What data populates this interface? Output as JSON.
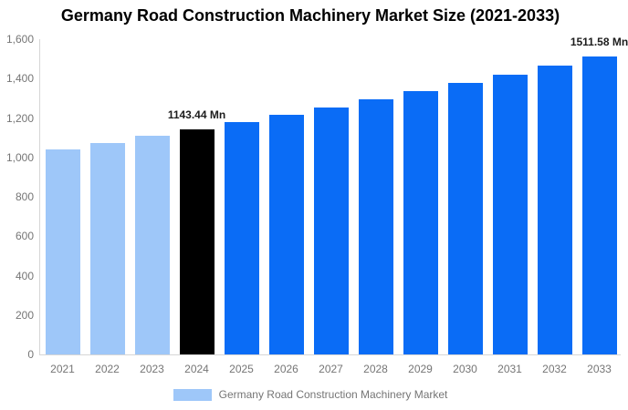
{
  "title": "Germany Road Construction Machinery Market Size (2021-2033)",
  "legend": {
    "items": [
      {
        "label": "Germany Road Construction Machinery Market",
        "swatch_color": "#9ec7f9"
      }
    ]
  },
  "colors": {
    "historical_bar": "#9ec7f9",
    "base_year_bar": "#000000",
    "forecast_bar": "#0a6cf6",
    "axis_line": "#d6d6d6",
    "tick_text": "#757575",
    "data_label_text": "#1c1c1c",
    "title_text": "#000000",
    "background": "#ffffff"
  },
  "chart_data": {
    "type": "bar",
    "title": "Germany Road Construction Machinery Market Size (2021-2033)",
    "xlabel": "",
    "ylabel": "",
    "unit": "Mn",
    "ylim": [
      0,
      1600
    ],
    "ytick_step": 200,
    "grid": false,
    "legend_position": "bottom",
    "categories": [
      "2021",
      "2022",
      "2023",
      "2024",
      "2025",
      "2026",
      "2027",
      "2028",
      "2029",
      "2030",
      "2031",
      "2032",
      "2033"
    ],
    "values": [
      1041.8,
      1074.6,
      1108.4,
      1143.44,
      1179.5,
      1216.6,
      1254.9,
      1294.5,
      1335.3,
      1377.3,
      1420.7,
      1465.5,
      1511.58
    ],
    "yticks": [
      {
        "label": "0",
        "value": 0
      },
      {
        "label": "200",
        "value": 200
      },
      {
        "label": "400",
        "value": 400
      },
      {
        "label": "600",
        "value": 600
      },
      {
        "label": "800",
        "value": 800
      },
      {
        "label": "1,000",
        "value": 1000
      },
      {
        "label": "1,200",
        "value": 1200
      },
      {
        "label": "1,400",
        "value": 1400
      },
      {
        "label": "1,600",
        "value": 1600
      }
    ],
    "bars": [
      {
        "year": "2021",
        "value": 1041.8,
        "color": "#9ec7f9",
        "label": ""
      },
      {
        "year": "2022",
        "value": 1074.6,
        "color": "#9ec7f9",
        "label": ""
      },
      {
        "year": "2023",
        "value": 1108.4,
        "color": "#9ec7f9",
        "label": ""
      },
      {
        "year": "2024",
        "value": 1143.44,
        "color": "#000000",
        "label": "1143.44 Mn"
      },
      {
        "year": "2025",
        "value": 1179.5,
        "color": "#0a6cf6",
        "label": ""
      },
      {
        "year": "2026",
        "value": 1216.6,
        "color": "#0a6cf6",
        "label": ""
      },
      {
        "year": "2027",
        "value": 1254.9,
        "color": "#0a6cf6",
        "label": ""
      },
      {
        "year": "2028",
        "value": 1294.5,
        "color": "#0a6cf6",
        "label": ""
      },
      {
        "year": "2029",
        "value": 1335.3,
        "color": "#0a6cf6",
        "label": ""
      },
      {
        "year": "2030",
        "value": 1377.3,
        "color": "#0a6cf6",
        "label": ""
      },
      {
        "year": "2031",
        "value": 1420.7,
        "color": "#0a6cf6",
        "label": ""
      },
      {
        "year": "2032",
        "value": 1465.5,
        "color": "#0a6cf6",
        "label": ""
      },
      {
        "year": "2033",
        "value": 1511.58,
        "color": "#0a6cf6",
        "label": "1511.58 Mn"
      }
    ],
    "data_labels": [
      {
        "year": "2024",
        "text": "1143.44 Mn"
      },
      {
        "year": "2033",
        "text": "1511.58 Mn"
      }
    ]
  }
}
